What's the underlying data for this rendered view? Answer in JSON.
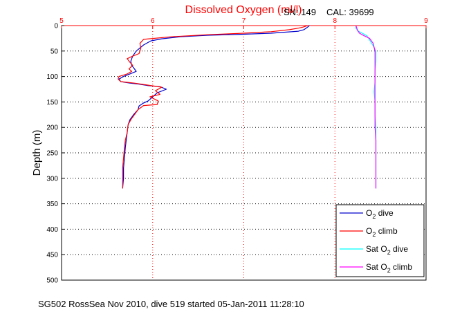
{
  "figure": {
    "title": "Dissolved Oxygen (ml/l)",
    "subtitle_sn": "SN: 149",
    "subtitle_cal": "CAL: 39699",
    "footer": "SG502 RossSea Nov 2010, dive 519 started 05-Jan-2011 11:28:10"
  },
  "chart_data": {
    "type": "line",
    "title": "Dissolved Oxygen (ml/l)",
    "xlabel": "",
    "ylabel": "Depth (m)",
    "xlim": [
      5,
      9
    ],
    "ylim": [
      0,
      500
    ],
    "y_reversed": true,
    "x_axis_position": "top",
    "grid": true,
    "legend_position": "bottom-right",
    "x_ticks": [
      "5",
      "6",
      "7",
      "8",
      "9"
    ],
    "y_ticks": [
      "0",
      "50",
      "100",
      "150",
      "200",
      "250",
      "300",
      "350",
      "400",
      "450",
      "500"
    ],
    "colors": {
      "o2_dive": "#0000cc",
      "o2_climb": "#ff0000",
      "sat_dive": "#00ffff",
      "sat_climb": "#ff00ff",
      "title": "#ff0000",
      "x_axis": "#ff0000",
      "grid": "#000000"
    },
    "series": [
      {
        "key": "o2_dive",
        "name": "O2 dive",
        "name_main": "O",
        "name_sub": "2",
        "name_rest": " dive",
        "points": [
          [
            7.72,
            0
          ],
          [
            7.7,
            3
          ],
          [
            7.66,
            8
          ],
          [
            7.6,
            11
          ],
          [
            7.3,
            15
          ],
          [
            7.0,
            17
          ],
          [
            6.6,
            19
          ],
          [
            6.3,
            22
          ],
          [
            6.1,
            26
          ],
          [
            5.98,
            30
          ],
          [
            5.9,
            38
          ],
          [
            5.82,
            50
          ],
          [
            5.78,
            60
          ],
          [
            5.76,
            70
          ],
          [
            5.77,
            78
          ],
          [
            5.8,
            85
          ],
          [
            5.82,
            90
          ],
          [
            5.75,
            95
          ],
          [
            5.68,
            100
          ],
          [
            5.63,
            105
          ],
          [
            5.65,
            110
          ],
          [
            5.75,
            113
          ],
          [
            5.85,
            115
          ],
          [
            5.95,
            118
          ],
          [
            6.08,
            120
          ],
          [
            6.15,
            125
          ],
          [
            6.05,
            132
          ],
          [
            6.0,
            140
          ],
          [
            5.95,
            148
          ],
          [
            5.9,
            152
          ],
          [
            5.85,
            158
          ],
          [
            5.84,
            165
          ],
          [
            5.79,
            175
          ],
          [
            5.75,
            185
          ],
          [
            5.73,
            195
          ],
          [
            5.72,
            210
          ],
          [
            5.71,
            225
          ],
          [
            5.7,
            240
          ],
          [
            5.69,
            260
          ],
          [
            5.68,
            280
          ],
          [
            5.68,
            300
          ],
          [
            5.67,
            320
          ]
        ]
      },
      {
        "key": "o2_climb",
        "name": "O2 climb",
        "name_main": "O",
        "name_sub": "2",
        "name_rest": " climb",
        "points": [
          [
            7.7,
            0
          ],
          [
            7.65,
            3
          ],
          [
            7.6,
            5
          ],
          [
            7.5,
            8
          ],
          [
            7.3,
            12
          ],
          [
            7.0,
            15
          ],
          [
            6.6,
            18
          ],
          [
            6.2,
            22
          ],
          [
            5.9,
            27
          ],
          [
            5.86,
            35
          ],
          [
            5.87,
            45
          ],
          [
            5.85,
            55
          ],
          [
            5.78,
            60
          ],
          [
            5.72,
            65
          ],
          [
            5.75,
            72
          ],
          [
            5.78,
            78
          ],
          [
            5.74,
            85
          ],
          [
            5.77,
            90
          ],
          [
            5.72,
            95
          ],
          [
            5.63,
            100
          ],
          [
            5.62,
            105
          ],
          [
            5.65,
            110
          ],
          [
            5.8,
            113
          ],
          [
            5.95,
            117
          ],
          [
            6.1,
            121
          ],
          [
            6.03,
            128
          ],
          [
            6.08,
            135
          ],
          [
            5.97,
            140
          ],
          [
            6.06,
            148
          ],
          [
            6.05,
            155
          ],
          [
            5.9,
            157
          ],
          [
            5.84,
            165
          ],
          [
            5.8,
            175
          ],
          [
            5.76,
            185
          ],
          [
            5.73,
            195
          ],
          [
            5.72,
            210
          ],
          [
            5.7,
            225
          ],
          [
            5.69,
            240
          ],
          [
            5.68,
            260
          ],
          [
            5.67,
            280
          ],
          [
            5.67,
            300
          ],
          [
            5.67,
            320
          ]
        ]
      },
      {
        "key": "sat_dive",
        "name": "Sat O2 dive",
        "name_main": "Sat O",
        "name_sub": "2",
        "name_rest": " dive",
        "points": [
          [
            8.23,
            0
          ],
          [
            8.23,
            5
          ],
          [
            8.25,
            10
          ],
          [
            8.3,
            15
          ],
          [
            8.35,
            20
          ],
          [
            8.38,
            28
          ],
          [
            8.42,
            40
          ],
          [
            8.45,
            50
          ],
          [
            8.45,
            70
          ],
          [
            8.44,
            90
          ],
          [
            8.44,
            110
          ],
          [
            8.43,
            130
          ],
          [
            8.44,
            150
          ],
          [
            8.44,
            175
          ],
          [
            8.45,
            200
          ],
          [
            8.45,
            225
          ],
          [
            8.45,
            250
          ],
          [
            8.45,
            275
          ],
          [
            8.45,
            300
          ],
          [
            8.45,
            320
          ]
        ]
      },
      {
        "key": "sat_climb",
        "name": "Sat O2 climb",
        "name_main": "Sat O",
        "name_sub": "2",
        "name_rest": " climb",
        "points": [
          [
            8.23,
            0
          ],
          [
            8.24,
            5
          ],
          [
            8.25,
            10
          ],
          [
            8.27,
            15
          ],
          [
            8.32,
            20
          ],
          [
            8.38,
            25
          ],
          [
            8.42,
            35
          ],
          [
            8.44,
            50
          ],
          [
            8.44,
            70
          ],
          [
            8.44,
            90
          ],
          [
            8.44,
            110
          ],
          [
            8.44,
            130
          ],
          [
            8.44,
            150
          ],
          [
            8.44,
            175
          ],
          [
            8.44,
            200
          ],
          [
            8.45,
            225
          ],
          [
            8.45,
            250
          ],
          [
            8.45,
            275
          ],
          [
            8.45,
            300
          ],
          [
            8.45,
            320
          ]
        ]
      }
    ]
  }
}
